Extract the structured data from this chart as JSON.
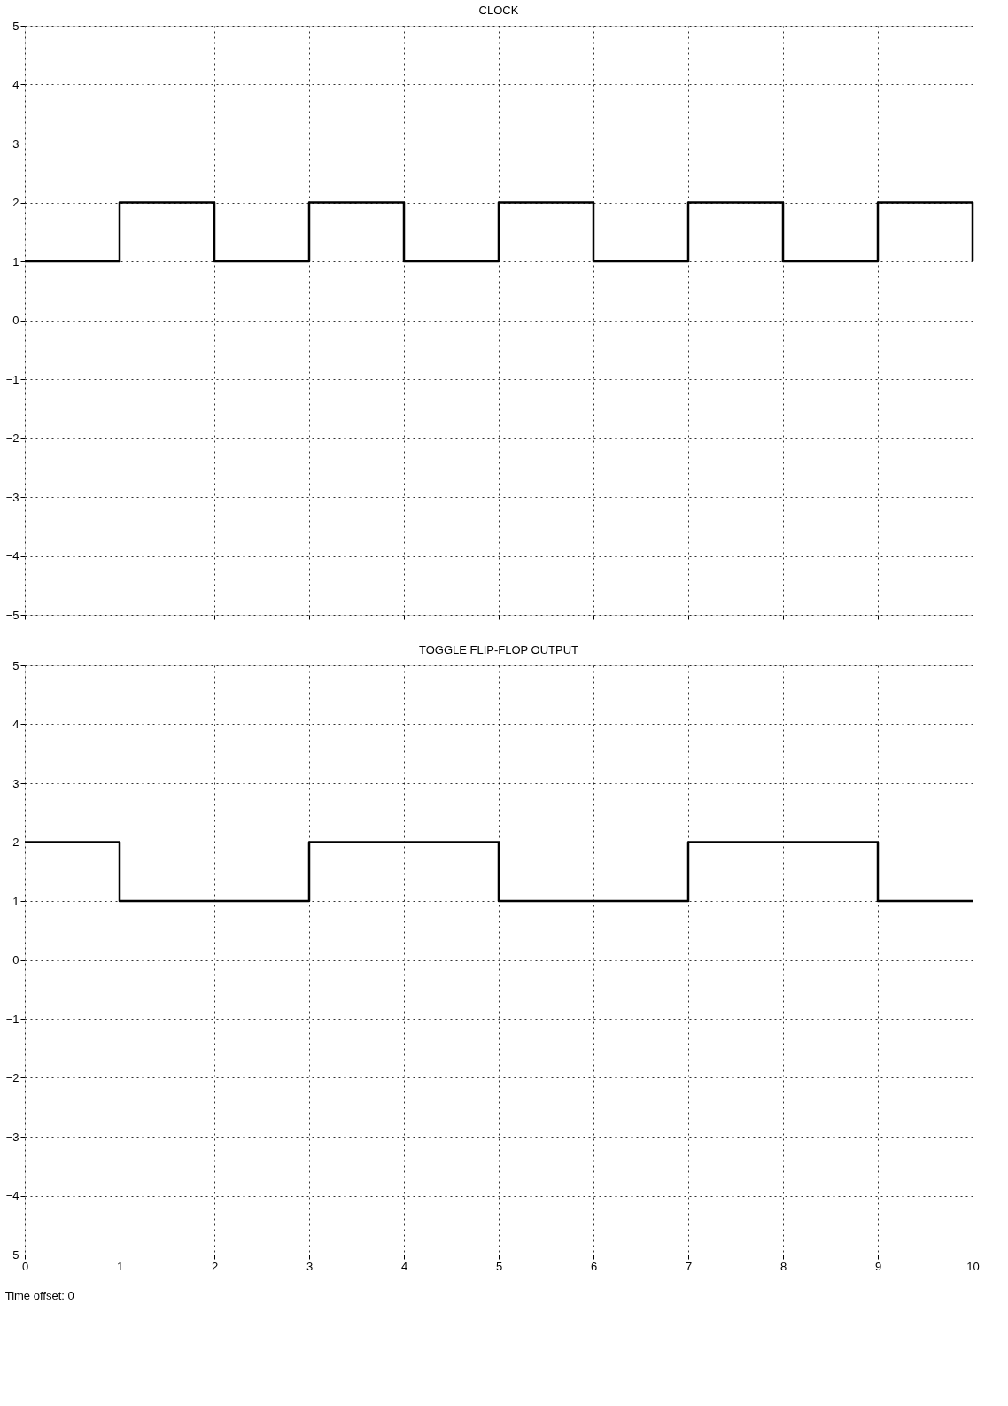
{
  "chart_data": [
    {
      "type": "step",
      "title": "CLOCK",
      "x": [
        0,
        1,
        2,
        3,
        4,
        5,
        6,
        7,
        8,
        9,
        10
      ],
      "values": [
        1,
        2,
        1,
        2,
        1,
        2,
        1,
        2,
        1,
        2,
        1
      ],
      "color": "#000000",
      "xlim": [
        0,
        10
      ],
      "ylim": [
        -5,
        5
      ],
      "xticks": [
        0,
        1,
        2,
        3,
        4,
        5,
        6,
        7,
        8,
        9,
        10
      ],
      "yticks": [
        -5,
        -4,
        -3,
        -2,
        -1,
        0,
        1,
        2,
        3,
        4,
        5
      ],
      "grid": true,
      "tick_labels": "y"
    },
    {
      "type": "step",
      "title": "TOGGLE FLIP-FLOP OUTPUT",
      "x": [
        0,
        1,
        2,
        3,
        4,
        5,
        6,
        7,
        8,
        9,
        10
      ],
      "values": [
        2,
        1,
        1,
        2,
        2,
        1,
        1,
        2,
        2,
        1,
        1
      ],
      "color": "#000000",
      "xlim": [
        0,
        10
      ],
      "ylim": [
        -5,
        5
      ],
      "xticks": [
        0,
        1,
        2,
        3,
        4,
        5,
        6,
        7,
        8,
        9,
        10
      ],
      "yticks": [
        -5,
        -4,
        -3,
        -2,
        -1,
        0,
        1,
        2,
        3,
        4,
        5
      ],
      "grid": true,
      "annotations": [
        "Time offset: 0"
      ]
    }
  ]
}
